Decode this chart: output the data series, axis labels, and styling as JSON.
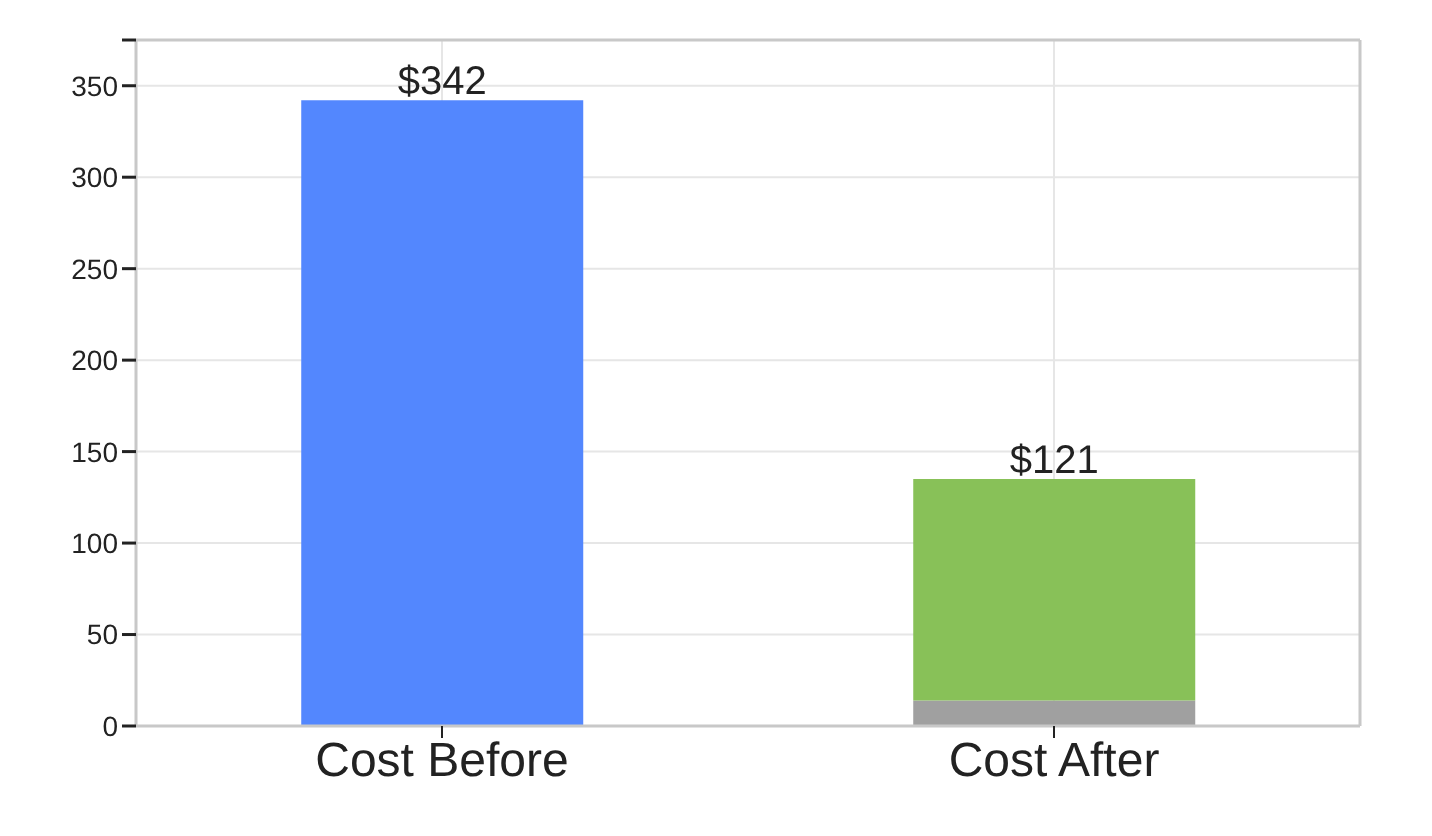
{
  "chart_data": {
    "type": "bar",
    "categories": [
      "Cost Before",
      "Cost After"
    ],
    "stacked": true,
    "series": [
      {
        "color": "#5387fe",
        "values": [
          342,
          null
        ],
        "value_labels": [
          "$342",
          null
        ]
      },
      {
        "color": "#a0a0a0",
        "values": [
          null,
          14
        ]
      },
      {
        "color": "#88c158",
        "values": [
          null,
          121
        ],
        "value_labels": [
          null,
          "$121"
        ]
      }
    ],
    "ylim": [
      0,
      375
    ],
    "yticks": [
      0,
      50,
      100,
      150,
      200,
      250,
      300,
      350,
      {
        "value": 375,
        "label": null
      }
    ],
    "grid": true
  }
}
